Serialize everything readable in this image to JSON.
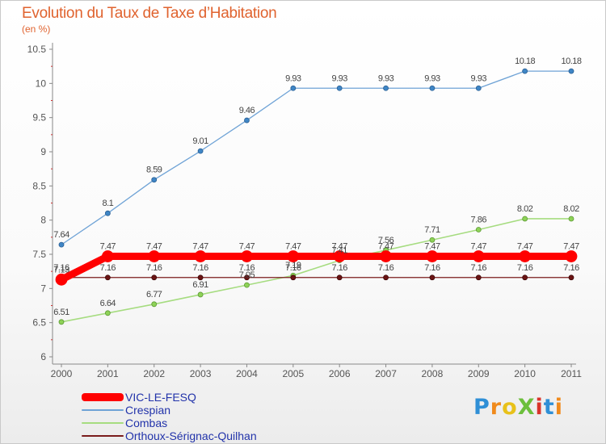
{
  "title": "Evolution du Taux de Taxe d’Habitation",
  "subtitle": "(en %)",
  "logo": {
    "text": "ProXiti",
    "letters": [
      {
        "ch": "P",
        "color": "#2f8fd6"
      },
      {
        "ch": "r",
        "color": "#f08a1c"
      },
      {
        "ch": "o",
        "color": "#e8c11a"
      },
      {
        "ch": "X",
        "color": "#6cbf3c"
      },
      {
        "ch": "i",
        "color": "#d9342b"
      },
      {
        "ch": "t",
        "color": "#2f8fd6"
      },
      {
        "ch": "i",
        "color": "#f08a1c"
      }
    ]
  },
  "chart_data": {
    "type": "line",
    "title": "Evolution du Taux de Taxe d’Habitation",
    "ylabel": "(en %)",
    "xlabel": "",
    "x": [
      "2000",
      "2001",
      "2002",
      "2003",
      "2004",
      "2005",
      "2006",
      "2007",
      "2008",
      "2009",
      "2010",
      "2011"
    ],
    "ylim": [
      6,
      10.5
    ],
    "yticks": [
      "6",
      "6.5",
      "7",
      "7.5",
      "8",
      "8.5",
      "9",
      "9.5",
      "10",
      "10.5"
    ],
    "grid": false,
    "legend_position": "bottom-left",
    "series": [
      {
        "name": "VIC-LE-FESQ",
        "color": "#ff0000",
        "values": [
          7.13,
          7.47,
          7.47,
          7.47,
          7.47,
          7.47,
          7.47,
          7.47,
          7.47,
          7.47,
          7.47,
          7.47
        ],
        "labels": [
          "7.13",
          "7.47",
          "7.47",
          "7.47",
          "7.47",
          "7.47",
          "7.47",
          "7.47",
          "7.47",
          "7.47",
          "7.47",
          "7.47"
        ]
      },
      {
        "name": "Crespian",
        "color": "#6fa3d6",
        "values": [
          7.64,
          8.1,
          8.59,
          9.01,
          9.46,
          9.93,
          9.93,
          9.93,
          9.93,
          9.93,
          10.18,
          10.18
        ],
        "labels": [
          "7.64",
          "8.1",
          "8.59",
          "9.01",
          "9.46",
          "9.93",
          "9.93",
          "9.93",
          "9.93",
          "9.93",
          "10.18",
          "10.18"
        ]
      },
      {
        "name": "Combas",
        "color": "#a6dc80",
        "values": [
          6.51,
          6.64,
          6.77,
          6.91,
          7.05,
          7.19,
          7.41,
          7.56,
          7.71,
          7.86,
          8.02,
          8.02
        ],
        "labels": [
          "6.51",
          "6.64",
          "6.77",
          "6.91",
          "7.05",
          "7.19",
          "7.41",
          "7.56",
          "7.71",
          "7.86",
          "8.02",
          "8.02"
        ]
      },
      {
        "name": "Orthoux-Sérignac-Quilhan",
        "color": "#7a1c1c",
        "values": [
          7.16,
          7.16,
          7.16,
          7.16,
          7.16,
          7.16,
          7.16,
          7.16,
          7.16,
          7.16,
          7.16,
          7.16
        ],
        "labels": [
          "7.16",
          "7.16",
          "7.16",
          "7.16",
          "7.16",
          "7.16",
          "7.16",
          "7.16",
          "7.16",
          "7.16",
          "7.16",
          "7.16"
        ]
      }
    ]
  }
}
